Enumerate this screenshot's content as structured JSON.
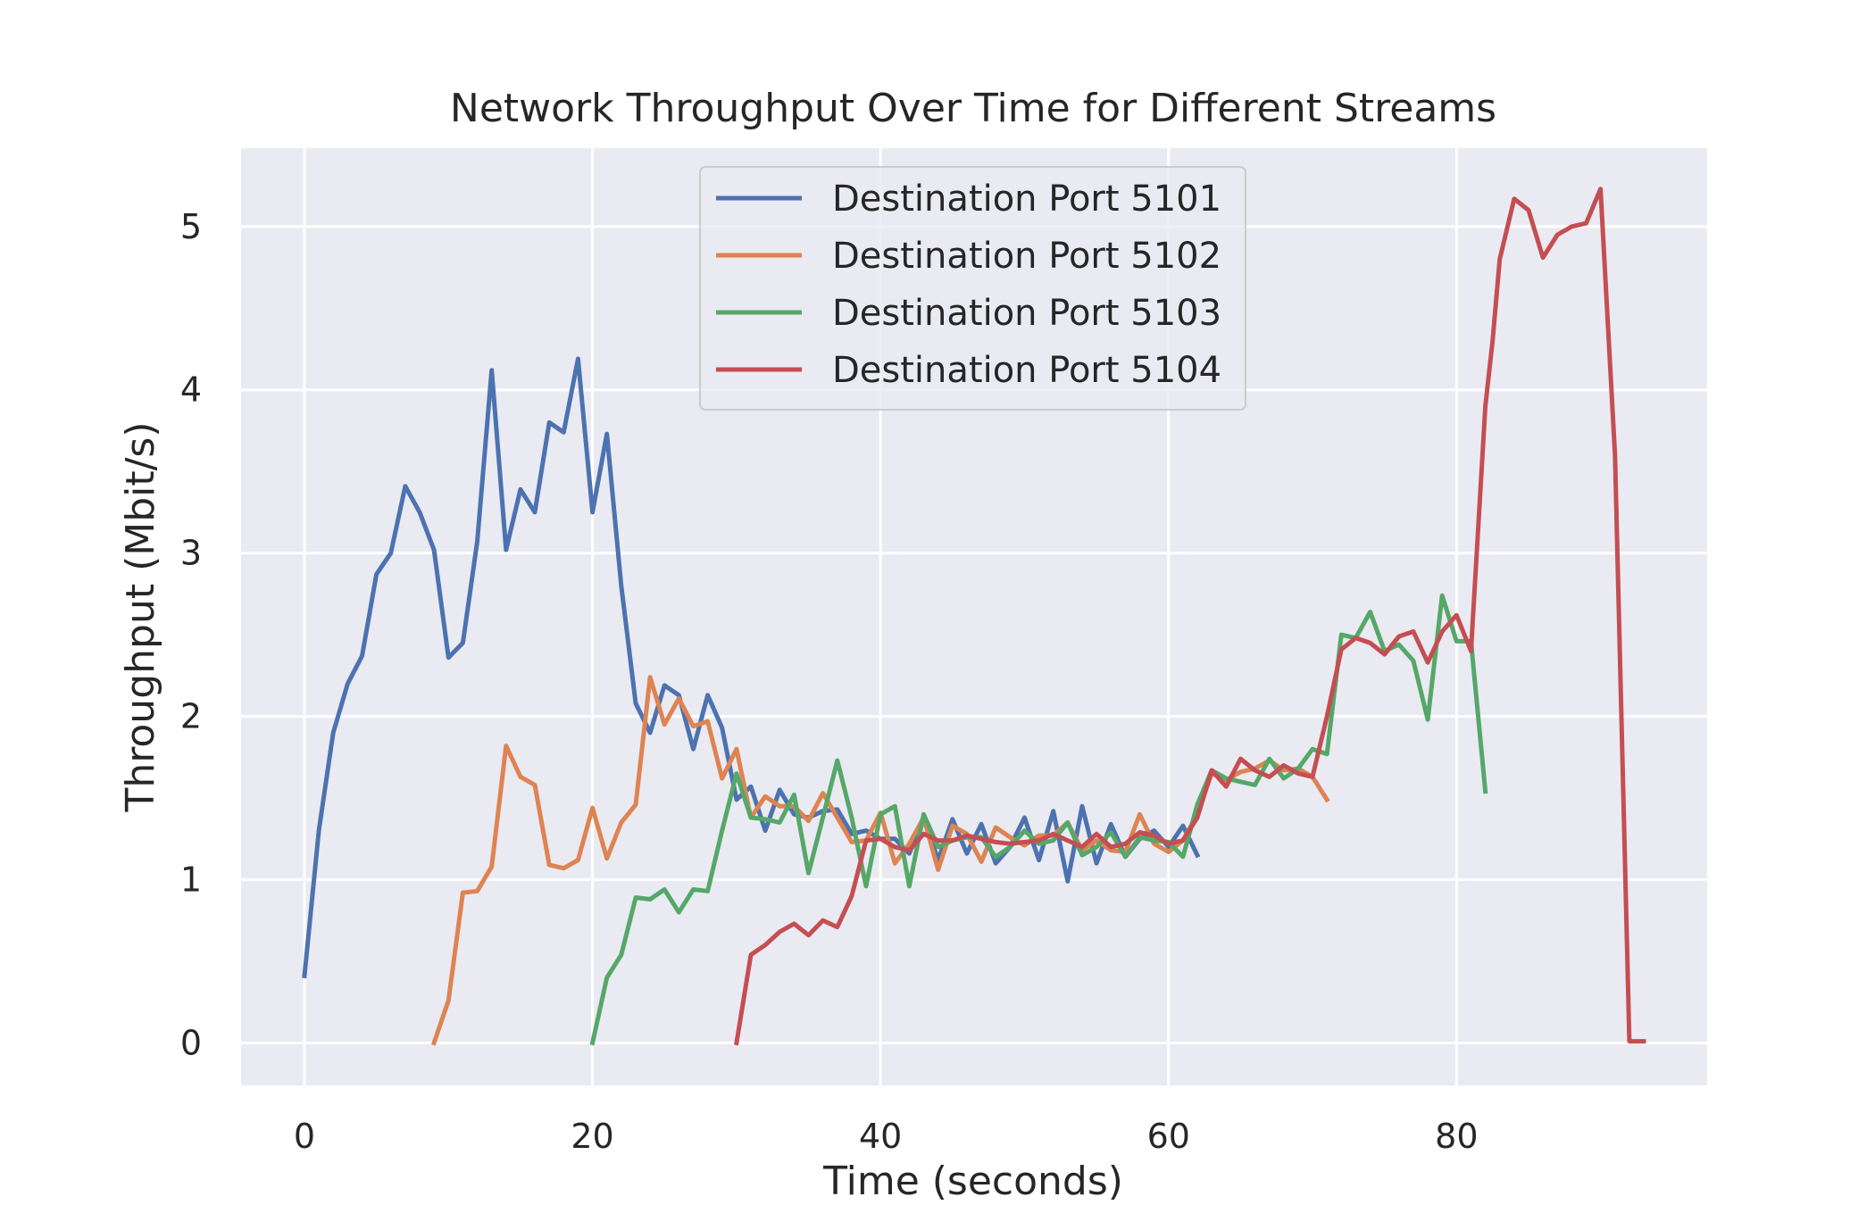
{
  "chart_data": {
    "type": "line",
    "title": "Network Throughput Over Time for Different Streams",
    "xlabel": "Time (seconds)",
    "ylabel": "Throughput (Mbit/s)",
    "xlim": [
      -4.4,
      97.4
    ],
    "ylim": [
      -0.26,
      5.48
    ],
    "xticks": [
      0,
      20,
      40,
      60,
      80
    ],
    "yticks": [
      0,
      1,
      2,
      3,
      4,
      5
    ],
    "grid": true,
    "legend_position": "upper-center",
    "series": [
      {
        "name": "Destination Port 5101",
        "color": "#4c72b0",
        "x": [
          0,
          1,
          2,
          3,
          4,
          5,
          6,
          7,
          8,
          9,
          10,
          11,
          12,
          13,
          14,
          15,
          16,
          17,
          18,
          19,
          20,
          21,
          22,
          23,
          24,
          25,
          26,
          27,
          28,
          29,
          30,
          31,
          32,
          33,
          34,
          35,
          36,
          37,
          38,
          39,
          40,
          41,
          42,
          43,
          44,
          45,
          46,
          47,
          48,
          49,
          50,
          51,
          52,
          53,
          54,
          55,
          56,
          57,
          58,
          59,
          60,
          61,
          62
        ],
        "y": [
          0.41,
          1.3,
          1.9,
          2.2,
          2.37,
          2.87,
          3.0,
          3.41,
          3.25,
          3.02,
          2.36,
          2.45,
          3.07,
          4.12,
          3.02,
          3.39,
          3.25,
          3.8,
          3.74,
          4.19,
          3.25,
          3.73,
          2.8,
          2.08,
          1.9,
          2.19,
          2.13,
          1.8,
          2.13,
          1.93,
          1.49,
          1.57,
          1.3,
          1.55,
          1.4,
          1.38,
          1.42,
          1.43,
          1.28,
          1.3,
          1.25,
          1.25,
          1.16,
          1.38,
          1.12,
          1.37,
          1.16,
          1.34,
          1.1,
          1.2,
          1.38,
          1.12,
          1.42,
          0.99,
          1.45,
          1.1,
          1.34,
          1.14,
          1.25,
          1.3,
          1.2,
          1.33,
          1.15
        ]
      },
      {
        "name": "Destination Port 5102",
        "color": "#dd8452",
        "x": [
          9,
          10,
          11,
          12,
          13,
          14,
          15,
          16,
          17,
          18,
          19,
          20,
          21,
          22,
          23,
          24,
          25,
          26,
          27,
          28,
          29,
          30,
          31,
          32,
          33,
          34,
          35,
          36,
          37,
          38,
          39,
          40,
          41,
          42,
          43,
          44,
          45,
          46,
          47,
          48,
          49,
          50,
          51,
          52,
          53,
          54,
          55,
          56,
          57,
          58,
          59,
          60,
          61,
          62,
          63,
          64,
          65,
          66,
          67,
          68,
          69,
          70,
          71
        ],
        "y": [
          0.0,
          0.26,
          0.92,
          0.93,
          1.08,
          1.82,
          1.63,
          1.58,
          1.09,
          1.07,
          1.12,
          1.44,
          1.13,
          1.35,
          1.46,
          2.24,
          1.95,
          2.11,
          1.94,
          1.97,
          1.62,
          1.8,
          1.38,
          1.51,
          1.45,
          1.45,
          1.36,
          1.53,
          1.38,
          1.23,
          1.24,
          1.41,
          1.1,
          1.22,
          1.38,
          1.06,
          1.33,
          1.28,
          1.11,
          1.32,
          1.26,
          1.21,
          1.27,
          1.27,
          1.35,
          1.18,
          1.24,
          1.18,
          1.17,
          1.4,
          1.22,
          1.17,
          1.24,
          1.4,
          1.65,
          1.61,
          1.66,
          1.68,
          1.73,
          1.67,
          1.68,
          1.63,
          1.49
        ]
      },
      {
        "name": "Destination Port 5103",
        "color": "#55a868",
        "x": [
          20,
          21,
          22,
          23,
          24,
          25,
          26,
          27,
          28,
          29,
          30,
          31,
          32,
          33,
          34,
          35,
          36,
          37,
          38,
          39,
          40,
          41,
          42,
          43,
          44,
          45,
          46,
          47,
          48,
          49,
          50,
          51,
          52,
          53,
          54,
          55,
          56,
          57,
          58,
          59,
          60,
          61,
          62,
          63,
          64,
          65,
          66,
          67,
          68,
          69,
          70,
          71,
          72,
          73,
          74,
          75,
          76,
          77,
          78,
          79,
          80,
          81,
          82
        ],
        "y": [
          0.0,
          0.4,
          0.54,
          0.89,
          0.88,
          0.94,
          0.8,
          0.94,
          0.93,
          1.3,
          1.65,
          1.38,
          1.37,
          1.35,
          1.52,
          1.04,
          1.38,
          1.73,
          1.38,
          0.96,
          1.4,
          1.45,
          0.96,
          1.4,
          1.2,
          1.24,
          1.26,
          1.26,
          1.14,
          1.2,
          1.3,
          1.22,
          1.24,
          1.35,
          1.15,
          1.2,
          1.29,
          1.14,
          1.26,
          1.24,
          1.23,
          1.14,
          1.46,
          1.67,
          1.62,
          1.6,
          1.58,
          1.74,
          1.62,
          1.68,
          1.8,
          1.77,
          2.5,
          2.48,
          2.64,
          2.4,
          2.44,
          2.34,
          1.98,
          2.74,
          2.46,
          2.46,
          1.54
        ]
      },
      {
        "name": "Destination Port 5104",
        "color": "#c44e52",
        "x": [
          30,
          31,
          32,
          33,
          34,
          35,
          36,
          37,
          38,
          39,
          40,
          41,
          42,
          43,
          44,
          45,
          46,
          47,
          48,
          49,
          50,
          51,
          52,
          53,
          54,
          55,
          56,
          57,
          58,
          59,
          60,
          61,
          62,
          63,
          64,
          65,
          66,
          67,
          68,
          69,
          70,
          71,
          72,
          73,
          74,
          75,
          76,
          77,
          78,
          79,
          80,
          81,
          82,
          82.5,
          83,
          84,
          85,
          86,
          87,
          88,
          89,
          90,
          91,
          92,
          93
        ],
        "y": [
          0.0,
          0.54,
          0.6,
          0.68,
          0.73,
          0.66,
          0.75,
          0.71,
          0.9,
          1.24,
          1.25,
          1.2,
          1.18,
          1.28,
          1.24,
          1.24,
          1.27,
          1.25,
          1.23,
          1.22,
          1.23,
          1.24,
          1.28,
          1.24,
          1.2,
          1.28,
          1.2,
          1.22,
          1.29,
          1.27,
          1.22,
          1.24,
          1.38,
          1.67,
          1.57,
          1.74,
          1.67,
          1.63,
          1.7,
          1.65,
          1.63,
          2.0,
          2.41,
          2.48,
          2.45,
          2.38,
          2.49,
          2.52,
          2.33,
          2.52,
          2.62,
          2.4,
          3.9,
          4.3,
          4.8,
          5.17,
          5.1,
          4.81,
          4.95,
          5.0,
          5.02,
          5.23,
          3.6,
          0.01,
          0.01
        ]
      }
    ]
  }
}
